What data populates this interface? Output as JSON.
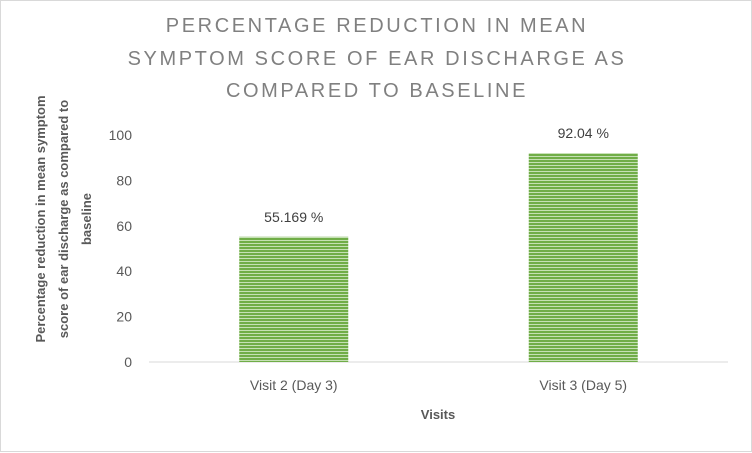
{
  "chart_data": {
    "type": "bar",
    "title": [
      "PERCENTAGE REDUCTION IN MEAN",
      "SYMPTOM SCORE OF EAR DISCHARGE AS",
      "COMPARED TO BASELINE"
    ],
    "categories": [
      "Visit 2 (Day 3)",
      "Visit 3 (Day 5)"
    ],
    "values": [
      55.169,
      92.04
    ],
    "data_labels": [
      "55.169 %",
      "92.04 %"
    ],
    "xlabel": "Visits",
    "ylabel": [
      "Percentage reduction in mean symptom",
      "score of ear discharge as compared to",
      "baseline"
    ],
    "ylim": [
      0,
      100
    ],
    "yticks": [
      "0",
      "20",
      "40",
      "60",
      "80",
      "100"
    ],
    "grid": false,
    "legend": "none",
    "bar_color": "#70ad47",
    "bar_stripe_color": "#c5e0b4"
  }
}
